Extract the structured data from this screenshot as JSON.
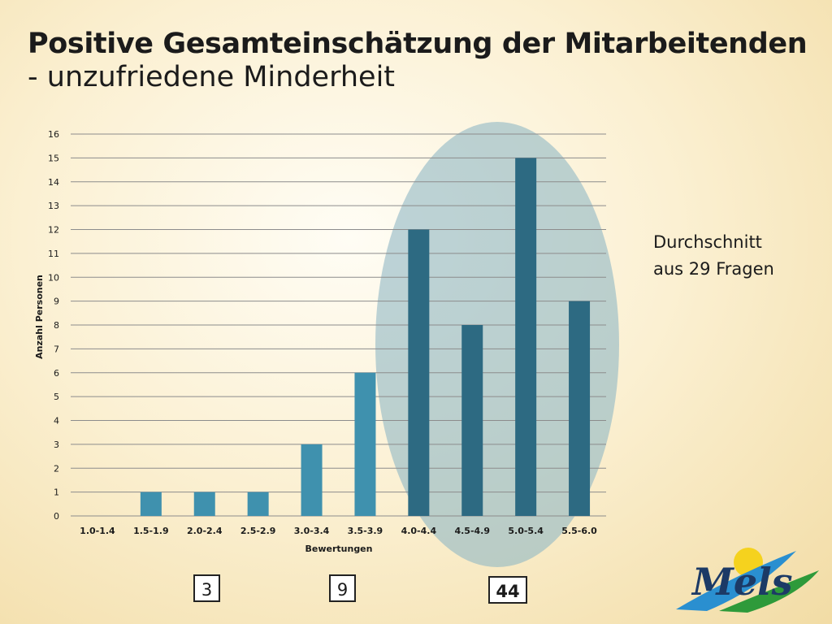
{
  "title": {
    "line1": "Positive Gesamteinschätzung der Mitarbeitenden",
    "line2": "- unzufriedene Minderheit"
  },
  "side_note": {
    "line1": "Durchschnitt",
    "line2": "aus 29 Fragen"
  },
  "group_sums": [
    {
      "label": "3",
      "bold": false
    },
    {
      "label": "9",
      "bold": false
    },
    {
      "label": "44",
      "bold": true
    }
  ],
  "logo": {
    "text": "Mels",
    "colors": {
      "sun": "#f5d21e",
      "text": "#1c3a66",
      "green": "#2e9a3a",
      "blue": "#2a8fd0"
    }
  },
  "colors": {
    "bar_light": "#3f91ae",
    "bar_dark": "#2d6a82",
    "ellipse": "#8fb8c4",
    "grid": "#8c8c8c"
  },
  "chart_data": {
    "type": "bar",
    "title": "",
    "xlabel": "Bewertungen",
    "ylabel": "Anzahl Personen",
    "categories": [
      "1.0-1.4",
      "1.5-1.9",
      "2.0-2.4",
      "2.5-2.9",
      "3.0-3.4",
      "3.5-3.9",
      "4.0-4.4",
      "4.5-4.9",
      "5.0-5.4",
      "5.5-6.0"
    ],
    "values": [
      0,
      1,
      1,
      1,
      3,
      6,
      12,
      8,
      15,
      9
    ],
    "ylim": [
      0,
      16
    ],
    "yticks": [
      0,
      1,
      2,
      3,
      4,
      5,
      6,
      7,
      8,
      9,
      10,
      11,
      12,
      13,
      14,
      15,
      16
    ],
    "grid": true,
    "highlighted_categories": [
      "4.0-4.4",
      "4.5-4.9",
      "5.0-5.4",
      "5.5-6.0"
    ]
  }
}
